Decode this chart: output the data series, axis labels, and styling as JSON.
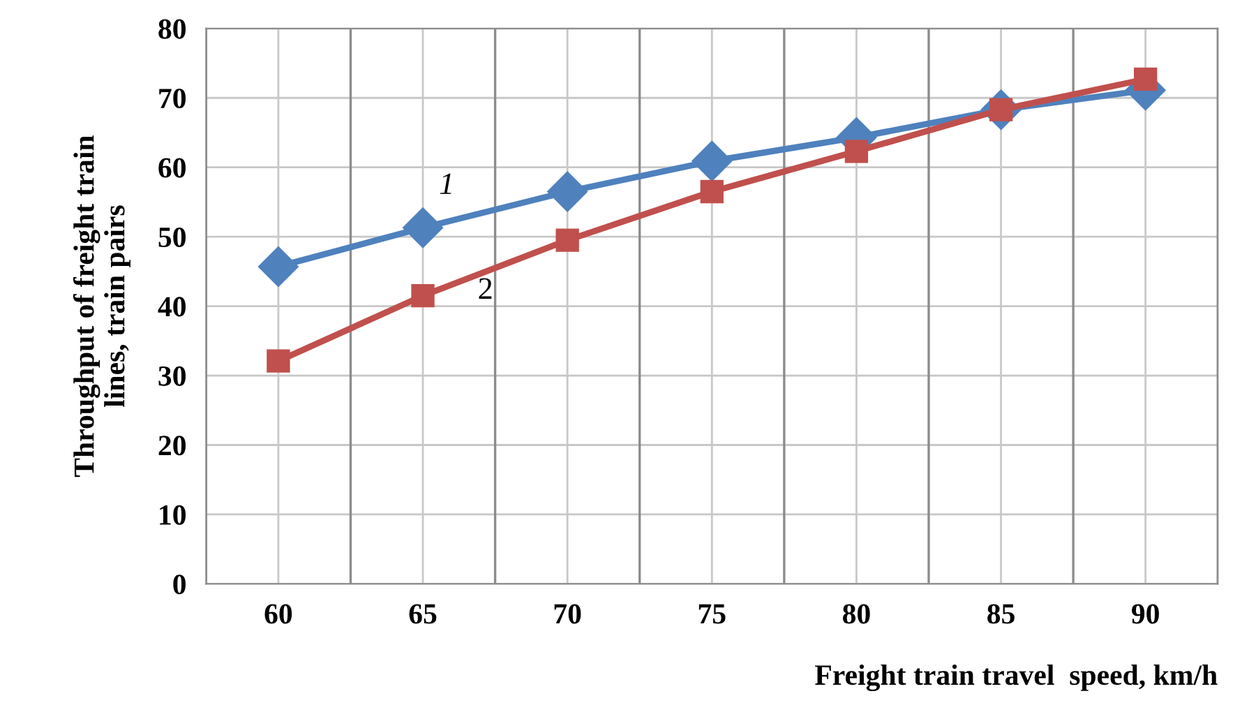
{
  "chart_data": {
    "type": "line",
    "xlabel": "Freight train travel  speed, km/h",
    "ylabel": "Throughput of freight train\nlines, train pairs",
    "categories": [
      "60",
      "65",
      "70",
      "75",
      "80",
      "85",
      "90"
    ],
    "series": [
      {
        "name": "1",
        "color": "#4f81bd",
        "marker": "diamond",
        "values": [
          45.7,
          51.3,
          56.5,
          60.9,
          64.3,
          68.3,
          71.1
        ]
      },
      {
        "name": "2",
        "color": "#c0504d",
        "marker": "square",
        "values": [
          32.1,
          41.5,
          49.5,
          56.5,
          62.3,
          68.3,
          72.7
        ]
      }
    ],
    "ylim": [
      0,
      80
    ],
    "yticks": [
      0,
      10,
      20,
      30,
      40,
      50,
      60,
      70,
      80
    ],
    "grid": true,
    "legend": false,
    "line_style": "solid"
  }
}
